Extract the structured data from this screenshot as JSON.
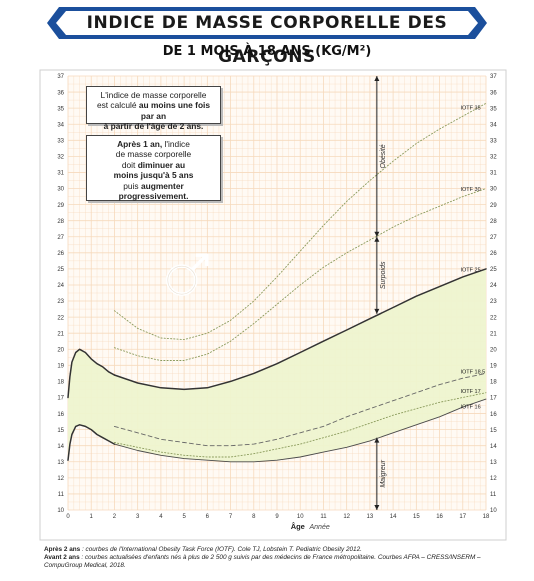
{
  "header": {
    "title": "INDICE DE MASSE CORPORELLE DES GARÇONS",
    "subtitle": "DE 1 MOIS À 18 ANS (KG/M²)"
  },
  "notes": {
    "box1": {
      "line1": "L'indice de masse corporelle",
      "line2_a": "est calculé ",
      "line2_b": "au moins une fois par an",
      "line3": "à partir de l'âge de 2 ans."
    },
    "box2": {
      "line1_a": "Après 1 an,",
      "line1_b": " l'indice",
      "line2": "de masse corporelle",
      "line3_a": "doit ",
      "line3_b": "diminuer au",
      "line4": "moins jusqu'à 5 ans",
      "line5_a": "puis ",
      "line5_b": "augmenter",
      "line6": "progressivement."
    }
  },
  "source": {
    "line1_label": "Après 2 ans",
    "line1_text": " : courbes de l'International Obesity Task Force (IOTF). Cole TJ, Lobstein T. Pediatric Obesity 2012.",
    "line2_label": "Avant 2 ans",
    "line2_text": " : courbes actualisées d'enfants nés à plus de 2 500 g suivis par des médecins de France métropolitaine. Courbes AFPA – CRESS/INSERM – CompuGroup Medical, 2018."
  },
  "colors": {
    "banner_blue": "#1b4f9c",
    "grid_orange": "#f6d9bc",
    "band_fill": "#eef4cf",
    "curve_dark": "#333333",
    "curve_light": "#8a9a5b"
  },
  "chart_data": {
    "type": "line",
    "xlabel": "Âge",
    "xlabel_unit": "Année",
    "xlim": [
      0,
      18
    ],
    "ylim": [
      10,
      37
    ],
    "x_ticks": [
      0,
      1,
      2,
      3,
      4,
      5,
      6,
      7,
      8,
      9,
      10,
      11,
      12,
      13,
      14,
      15,
      16,
      17,
      18
    ],
    "y_ticks": [
      10,
      11,
      12,
      13,
      14,
      15,
      16,
      17,
      18,
      19,
      20,
      21,
      22,
      23,
      24,
      25,
      26,
      27,
      28,
      29,
      30,
      31,
      32,
      33,
      34,
      35,
      36,
      37
    ],
    "grid": true,
    "series": [
      {
        "name": "IOTF 35",
        "style": "dotted",
        "x": [
          2,
          3,
          4,
          5,
          6,
          7,
          8,
          9,
          10,
          11,
          12,
          13,
          14,
          15,
          16,
          17,
          18
        ],
        "y": [
          22.4,
          21.3,
          20.7,
          20.6,
          21.0,
          21.8,
          23.0,
          24.5,
          26.1,
          27.7,
          29.2,
          30.5,
          31.7,
          32.8,
          33.7,
          34.5,
          35.3
        ]
      },
      {
        "name": "IOTF 30",
        "style": "dotted",
        "x": [
          2,
          3,
          4,
          5,
          6,
          7,
          8,
          9,
          10,
          11,
          12,
          13,
          14,
          15,
          16,
          17,
          18
        ],
        "y": [
          20.1,
          19.6,
          19.3,
          19.3,
          19.7,
          20.5,
          21.6,
          22.8,
          24.0,
          25.1,
          26.0,
          26.8,
          27.6,
          28.3,
          28.9,
          29.5,
          30.0
        ]
      },
      {
        "name": "IOTF 25",
        "style": "solid-dark",
        "x": [
          2,
          3,
          4,
          5,
          6,
          7,
          8,
          9,
          10,
          11,
          12,
          13,
          14,
          15,
          16,
          17,
          18
        ],
        "y": [
          18.4,
          17.9,
          17.6,
          17.5,
          17.6,
          18.0,
          18.5,
          19.1,
          19.8,
          20.5,
          21.2,
          21.9,
          22.6,
          23.3,
          23.9,
          24.5,
          25.0
        ]
      },
      {
        "name": "IOTF 18.5",
        "style": "dashed",
        "x": [
          2,
          3,
          4,
          5,
          6,
          7,
          8,
          9,
          10,
          11,
          12,
          13,
          14,
          15,
          16,
          17,
          18
        ],
        "y": [
          15.2,
          14.8,
          14.4,
          14.2,
          14.0,
          14.0,
          14.1,
          14.4,
          14.8,
          15.2,
          15.8,
          16.3,
          16.8,
          17.3,
          17.8,
          18.2,
          18.5
        ]
      },
      {
        "name": "IOTF 17",
        "style": "dotted",
        "x": [
          2,
          3,
          4,
          5,
          6,
          7,
          8,
          9,
          10,
          11,
          12,
          13,
          14,
          15,
          16,
          17,
          18
        ],
        "y": [
          14.2,
          13.9,
          13.6,
          13.4,
          13.3,
          13.3,
          13.5,
          13.8,
          14.1,
          14.5,
          14.9,
          15.4,
          15.9,
          16.3,
          16.7,
          17.0,
          17.3
        ]
      },
      {
        "name": "IOTF 16",
        "style": "solid-light",
        "x": [
          2,
          3,
          4,
          5,
          6,
          7,
          8,
          9,
          10,
          11,
          12,
          13,
          14,
          15,
          16,
          17,
          18
        ],
        "y": [
          14.1,
          13.7,
          13.4,
          13.2,
          13.1,
          13.0,
          13.0,
          13.1,
          13.3,
          13.6,
          13.9,
          14.3,
          14.8,
          15.3,
          15.8,
          16.4,
          16.9
        ]
      },
      {
        "name": "Courbe haute (0-2 ans)",
        "style": "solid-dark",
        "x": [
          0,
          0.08,
          0.17,
          0.33,
          0.5,
          0.75,
          1,
          1.25,
          1.5,
          1.75,
          2
        ],
        "y": [
          17.0,
          18.3,
          19.2,
          19.8,
          20.0,
          19.8,
          19.4,
          19.1,
          18.9,
          18.6,
          18.4
        ]
      },
      {
        "name": "Courbe basse (0-2 ans)",
        "style": "solid-dark",
        "x": [
          0,
          0.08,
          0.17,
          0.33,
          0.5,
          0.75,
          1,
          1.25,
          1.5,
          1.75,
          2
        ],
        "y": [
          13.1,
          14.1,
          14.7,
          15.2,
          15.3,
          15.2,
          15.0,
          14.7,
          14.5,
          14.3,
          14.1
        ]
      }
    ],
    "curve_labels": [
      "IOTF 35",
      "IOTF 30",
      "IOTF 25",
      "IOTF 18.5",
      "IOTF 17",
      "IOTF 16"
    ],
    "zones": [
      {
        "label": "Obésité",
        "y_from": 27,
        "y_to": 37
      },
      {
        "label": "Surpoids",
        "y_from": 22.2,
        "y_to": 27
      },
      {
        "label": "Maigreur",
        "y_from": 10,
        "y_to": 14.5
      }
    ],
    "zone_x": 13.3
  }
}
